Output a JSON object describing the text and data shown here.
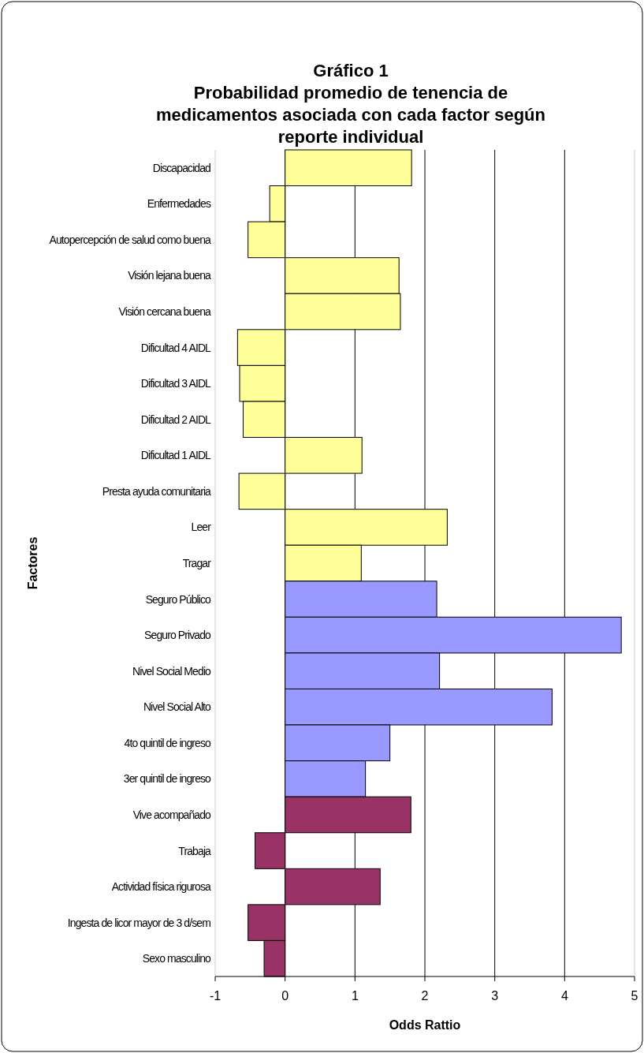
{
  "chart_data": {
    "type": "bar",
    "orientation": "horizontal",
    "title": "Gráfico 1",
    "subtitle": "Probabilidad promedio de tenencia de medicamentos asociada con cada factor según reporte individual",
    "xlabel": "Odds Rattio",
    "ylabel": "Factores",
    "categories": [
      "Discapacidad",
      "Enfermedades",
      "Autopercepción de salud como buena",
      "Visión lejana buena",
      "Visión cercana buena",
      "Dificultad 4 AIDL",
      "Dificultad 3 AIDL",
      "Dificultad 2 AIDL",
      "Dificultad 1 AIDL",
      "Presta ayuda comunitaria",
      "Leer",
      "Tragar",
      "Seguro Público",
      "Seguro Privado",
      "Nivel Social Medio",
      "Nivel Social Alto",
      "4to quintil de ingreso",
      "3er quintil de ingreso",
      "Vive acompañado",
      "Trabaja",
      "Actividad física rigurosa",
      "Ingesta de licor mayor de  3 d/sem",
      "Sexo masculino"
    ],
    "values": [
      1.81,
      -0.22,
      -0.53,
      1.63,
      1.65,
      -0.68,
      -0.65,
      -0.6,
      1.1,
      -0.66,
      2.32,
      1.09,
      2.17,
      4.81,
      2.21,
      3.82,
      1.5,
      1.15,
      1.8,
      -0.43,
      1.36,
      -0.53,
      -0.3
    ],
    "colors": [
      "#ffff99",
      "#ffff99",
      "#ffff99",
      "#ffff99",
      "#ffff99",
      "#ffff99",
      "#ffff99",
      "#ffff99",
      "#ffff99",
      "#ffff99",
      "#ffff99",
      "#ffff99",
      "#9999ff",
      "#9999ff",
      "#9999ff",
      "#9999ff",
      "#9999ff",
      "#9999ff",
      "#993366",
      "#993366",
      "#993366",
      "#993366",
      "#993366"
    ],
    "xlim": [
      -1,
      5
    ],
    "xticks": [
      -1,
      0,
      1,
      2,
      3,
      4,
      5
    ],
    "grid": "x"
  }
}
